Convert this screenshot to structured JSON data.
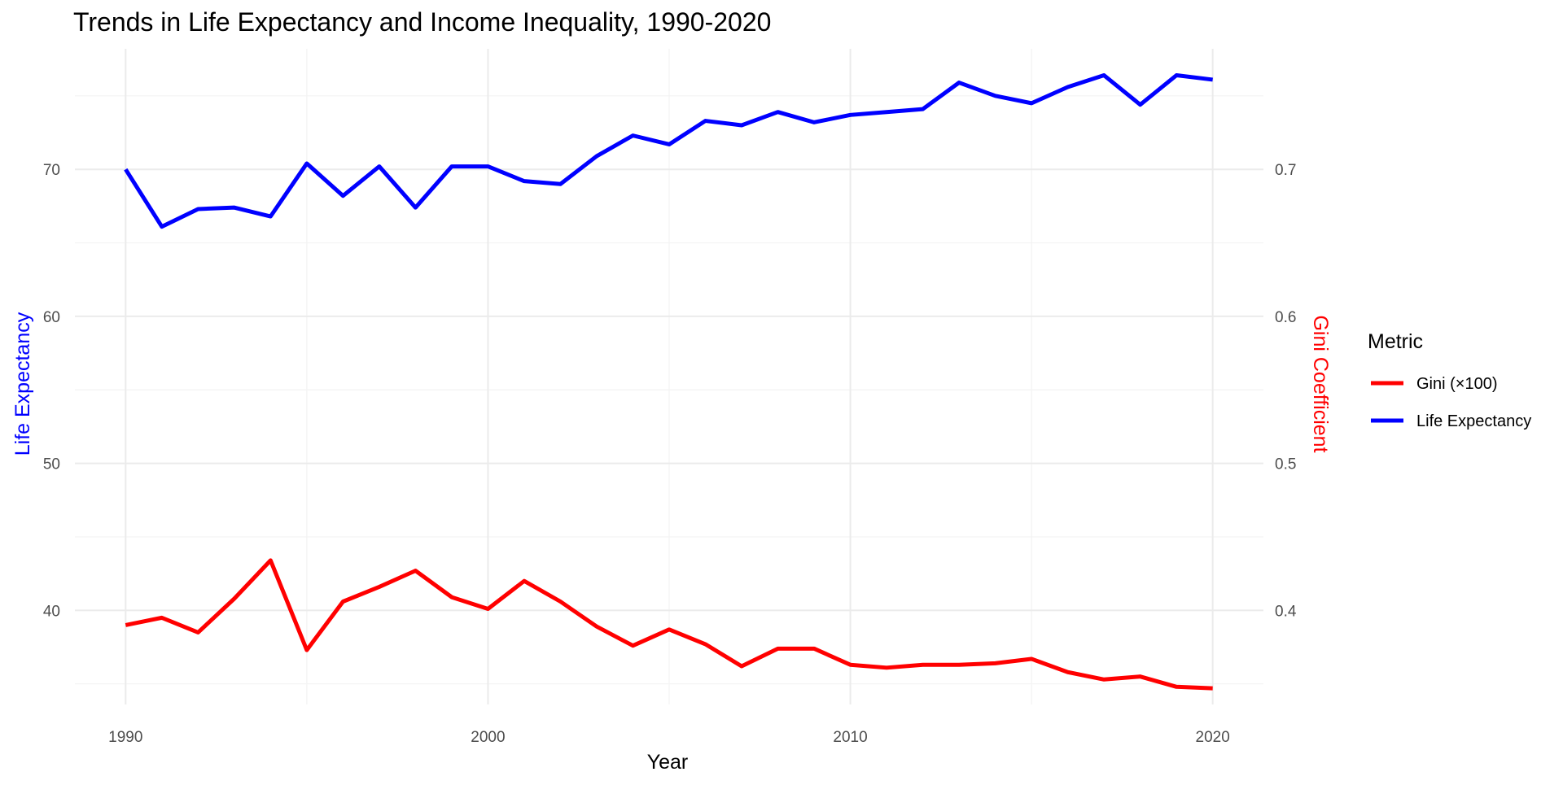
{
  "chart_data": {
    "type": "line",
    "title": "Trends in Life Expectancy and Income Inequality, 1990-2020",
    "xlabel": "Year",
    "ylabel_left": "Life Expectancy",
    "ylabel_right": "Gini Coefficient",
    "xlim": [
      1988.6,
      2021.4
    ],
    "ylim": [
      33.6,
      78.2
    ],
    "x_ticks": [
      1990,
      2000,
      2010,
      2020
    ],
    "y_ticks_left": [
      40,
      50,
      60,
      70
    ],
    "y_ticks_right_labels": [
      "0.4",
      "0.5",
      "0.6",
      "0.7"
    ],
    "grid": true,
    "legend": {
      "title": "Metric",
      "position": "right"
    },
    "x": [
      1990,
      1991,
      1992,
      1993,
      1994,
      1995,
      1996,
      1997,
      1998,
      1999,
      2000,
      2001,
      2002,
      2003,
      2004,
      2005,
      2006,
      2007,
      2008,
      2009,
      2010,
      2011,
      2012,
      2013,
      2014,
      2015,
      2016,
      2017,
      2018,
      2019,
      2020
    ],
    "series": [
      {
        "name": "Gini (×100)",
        "color": "#ff0000",
        "values": [
          39.0,
          39.5,
          38.5,
          40.8,
          43.4,
          37.3,
          40.6,
          41.6,
          42.7,
          40.9,
          40.1,
          42.0,
          40.6,
          38.9,
          37.6,
          38.7,
          37.7,
          36.2,
          37.4,
          37.4,
          36.3,
          36.1,
          36.3,
          36.3,
          36.4,
          36.7,
          35.8,
          35.3,
          35.5,
          34.8,
          34.7
        ]
      },
      {
        "name": "Life Expectancy",
        "color": "#0000ff",
        "values": [
          70.0,
          66.1,
          67.3,
          67.4,
          66.8,
          70.4,
          68.2,
          70.2,
          67.4,
          70.2,
          70.2,
          69.2,
          69.0,
          70.9,
          72.3,
          71.7,
          73.3,
          73.0,
          73.9,
          73.2,
          73.7,
          73.9,
          74.1,
          75.9,
          75.0,
          74.5,
          75.6,
          76.4,
          74.4,
          76.4,
          76.1
        ]
      }
    ]
  }
}
